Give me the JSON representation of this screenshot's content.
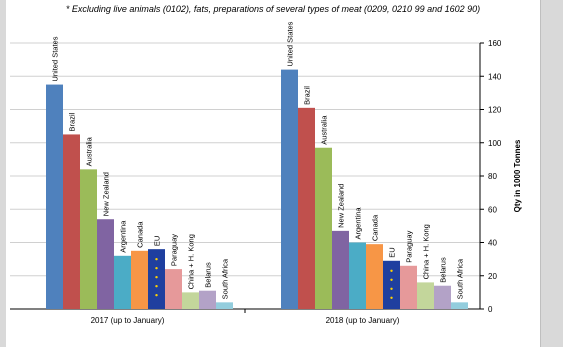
{
  "subtitle": "* Excluding live animals (0102), fats, preparations of several types of meat (0209, 0210 99 and 1602 90)",
  "chart_data": {
    "type": "bar",
    "title": "",
    "ylabel": "Qty in 1000 Tonnes",
    "ylim": [
      0,
      160
    ],
    "yticks": [
      0,
      20,
      40,
      60,
      80,
      100,
      120,
      140,
      160
    ],
    "groups": [
      {
        "name": "2017 (up to January)",
        "bars": [
          {
            "label": "United States",
            "value": 135,
            "color": "#4f81bd"
          },
          {
            "label": "Brazil",
            "value": 105,
            "color": "#c0504d"
          },
          {
            "label": "Australia",
            "value": 84,
            "color": "#9bbb59"
          },
          {
            "label": "New Zealand",
            "value": 54,
            "color": "#8064a2"
          },
          {
            "label": "Argentina",
            "value": 32,
            "color": "#4bacc6"
          },
          {
            "label": "Canada",
            "value": 35,
            "color": "#f79646"
          },
          {
            "label": "EU",
            "value": 36,
            "color": "#1f3f9f",
            "eu": true
          },
          {
            "label": "Paraguay",
            "value": 24,
            "color": "#e6999a"
          },
          {
            "label": "China + H. Kong",
            "value": 10,
            "color": "#c3d69b"
          },
          {
            "label": "Belarus",
            "value": 11,
            "color": "#b3a2c7"
          },
          {
            "label": "South Africa",
            "value": 4,
            "color": "#93cddd"
          }
        ]
      },
      {
        "name": "2018 (up to January)",
        "bars": [
          {
            "label": "United States",
            "value": 144,
            "color": "#4f81bd"
          },
          {
            "label": "Brazil",
            "value": 121,
            "color": "#c0504d"
          },
          {
            "label": "Australia",
            "value": 97,
            "color": "#9bbb59"
          },
          {
            "label": "New Zealand",
            "value": 47,
            "color": "#8064a2"
          },
          {
            "label": "Argentina",
            "value": 40,
            "color": "#4bacc6"
          },
          {
            "label": "Canada",
            "value": 39,
            "color": "#f79646"
          },
          {
            "label": "EU",
            "value": 29,
            "color": "#1f3f9f",
            "eu": true
          },
          {
            "label": "Paraguay",
            "value": 26,
            "color": "#e6999a"
          },
          {
            "label": "China + H. Kong",
            "value": 16,
            "color": "#c3d69b"
          },
          {
            "label": "Belarus",
            "value": 14,
            "color": "#b3a2c7"
          },
          {
            "label": "South Africa",
            "value": 4,
            "color": "#93cddd"
          }
        ]
      }
    ],
    "grid": true,
    "legend": "none",
    "yaxis_position": "right"
  }
}
